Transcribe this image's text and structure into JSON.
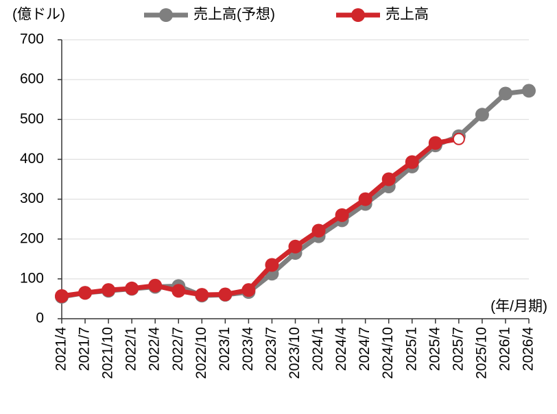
{
  "chart_data": {
    "type": "line",
    "y_unit": "(億ドル)",
    "x_unit": "(年/月期)",
    "categories": [
      "2021/4",
      "2021/7",
      "2021/10",
      "2022/1",
      "2022/4",
      "2022/7",
      "2022/10",
      "2023/1",
      "2023/4",
      "2023/7",
      "2023/10",
      "2024/1",
      "2024/4",
      "2024/7",
      "2024/10",
      "2025/1",
      "2025/4",
      "2025/7",
      "2025/10",
      "2026/1",
      "2026/4"
    ],
    "series": [
      {
        "name": "売上高(予想)",
        "color": "#7f7f7f",
        "values": [
          55,
          65,
          70,
          75,
          80,
          82,
          58,
          60,
          67,
          113,
          165,
          207,
          247,
          288,
          332,
          382,
          435,
          458,
          512,
          565,
          572
        ]
      },
      {
        "name": "売上高",
        "color": "#d0262b",
        "values": [
          57,
          65,
          72,
          76,
          83,
          70,
          60,
          61,
          72,
          135,
          181,
          221,
          260,
          300,
          350,
          393,
          441,
          451,
          null,
          null,
          null
        ]
      }
    ],
    "ylim": [
      0,
      700
    ],
    "yticks": [
      0,
      100,
      200,
      300,
      400,
      500,
      600,
      700
    ],
    "grid": true
  }
}
